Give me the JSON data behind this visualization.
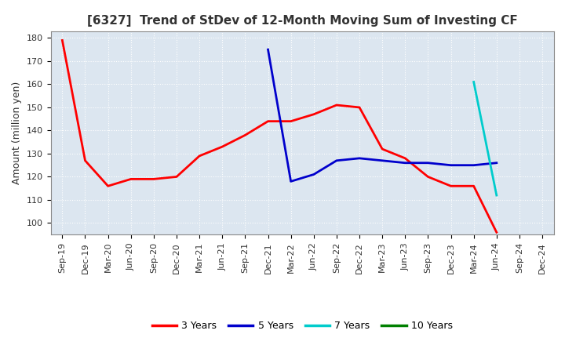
{
  "title": "[6327]  Trend of StDev of 12-Month Moving Sum of Investing CF",
  "ylabel": "Amount (million yen)",
  "plot_bg_color": "#dce6f0",
  "fig_bg_color": "#ffffff",
  "grid_color": "#ffffff",
  "ylim": [
    95,
    183
  ],
  "yticks": [
    100,
    110,
    120,
    130,
    140,
    150,
    160,
    170,
    180
  ],
  "x_labels": [
    "Sep-19",
    "Dec-19",
    "Mar-20",
    "Jun-20",
    "Sep-20",
    "Dec-20",
    "Mar-21",
    "Jun-21",
    "Sep-21",
    "Dec-21",
    "Mar-22",
    "Jun-22",
    "Sep-22",
    "Dec-22",
    "Mar-23",
    "Jun-23",
    "Sep-23",
    "Dec-23",
    "Mar-24",
    "Jun-24",
    "Sep-24",
    "Dec-24"
  ],
  "series_3y": {
    "color": "#ff0000",
    "label": "3 Years",
    "values": [
      179,
      127,
      116,
      119,
      119,
      120,
      129,
      133,
      138,
      144,
      144,
      147,
      151,
      150,
      132,
      128,
      120,
      116,
      116,
      96,
      null,
      null
    ]
  },
  "series_5y": {
    "color": "#0000cc",
    "label": "5 Years",
    "values": [
      null,
      null,
      null,
      null,
      null,
      null,
      null,
      null,
      null,
      175,
      118,
      121,
      127,
      128,
      127,
      126,
      126,
      125,
      125,
      126,
      null,
      null
    ]
  },
  "series_7y": {
    "color": "#00cccc",
    "label": "7 Years",
    "values": [
      null,
      null,
      null,
      null,
      null,
      null,
      null,
      null,
      null,
      null,
      null,
      null,
      null,
      null,
      null,
      null,
      null,
      null,
      161,
      112,
      null,
      null
    ]
  },
  "series_10y": {
    "color": "#008000",
    "label": "10 Years",
    "values": [
      null,
      null,
      null,
      null,
      null,
      null,
      null,
      null,
      null,
      null,
      null,
      null,
      null,
      null,
      null,
      null,
      null,
      null,
      null,
      null,
      null,
      null
    ]
  },
  "legend_labels": [
    "3 Years",
    "5 Years",
    "7 Years",
    "10 Years"
  ],
  "legend_colors": [
    "#ff0000",
    "#0000cc",
    "#00cccc",
    "#008000"
  ],
  "linewidth": 2.0,
  "title_fontsize": 11,
  "tick_fontsize": 8,
  "ylabel_fontsize": 9
}
